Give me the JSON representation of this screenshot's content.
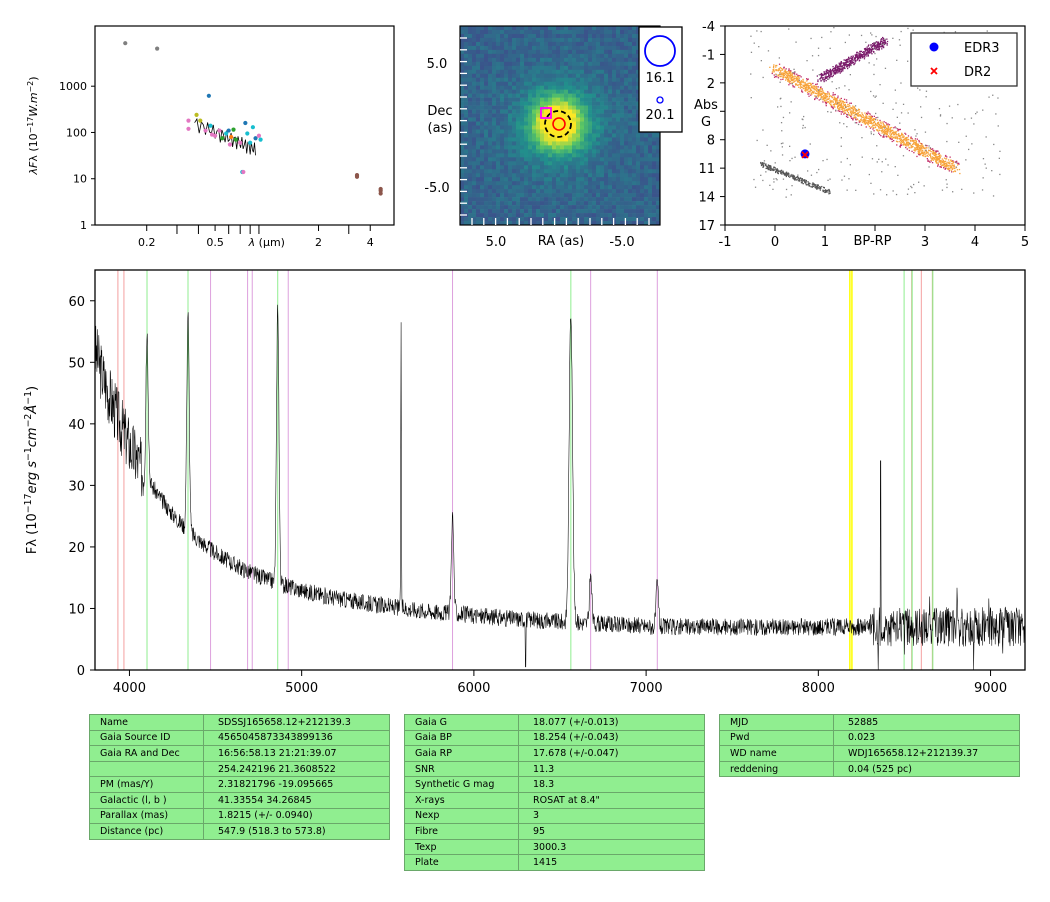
{
  "sed": {
    "ylabel": "λF_λ (10^-17 W.m^-2)",
    "xlabel": "λ (μm)",
    "yticks": [
      "1",
      "10",
      "100",
      "1000"
    ],
    "xticks": [
      "0.2",
      "0.5",
      "2",
      "4"
    ],
    "points": [
      {
        "x": 0.15,
        "y": 8500,
        "c": "#7f7f7f"
      },
      {
        "x": 0.23,
        "y": 6500,
        "c": "#7f7f7f"
      },
      {
        "x": 0.35,
        "y": 180,
        "c": "#e377c2"
      },
      {
        "x": 0.35,
        "y": 120,
        "c": "#e377c2"
      },
      {
        "x": 0.39,
        "y": 240,
        "c": "#bcbd22"
      },
      {
        "x": 0.41,
        "y": 180,
        "c": "#bcbd22"
      },
      {
        "x": 0.44,
        "y": 110,
        "c": "#e377c2"
      },
      {
        "x": 0.46,
        "y": 620,
        "c": "#1f77b4"
      },
      {
        "x": 0.47,
        "y": 140,
        "c": "#17becf"
      },
      {
        "x": 0.48,
        "y": 90,
        "c": "#e377c2"
      },
      {
        "x": 0.5,
        "y": 85,
        "c": "#e377c2"
      },
      {
        "x": 0.53,
        "y": 110,
        "c": "#e377c2"
      },
      {
        "x": 0.55,
        "y": 75,
        "c": "#2ca02c"
      },
      {
        "x": 0.58,
        "y": 95,
        "c": "#17becf"
      },
      {
        "x": 0.6,
        "y": 110,
        "c": "#1f77b4"
      },
      {
        "x": 0.61,
        "y": 55,
        "c": "#e377c2"
      },
      {
        "x": 0.62,
        "y": 80,
        "c": "#ff7f0e"
      },
      {
        "x": 0.64,
        "y": 115,
        "c": "#2ca02c"
      },
      {
        "x": 0.66,
        "y": 70,
        "c": "#2ca02c"
      },
      {
        "x": 0.7,
        "y": 60,
        "c": "#e377c2"
      },
      {
        "x": 0.72,
        "y": 14,
        "c": "#17becf"
      },
      {
        "x": 0.73,
        "y": 14,
        "c": "#e377c2"
      },
      {
        "x": 0.75,
        "y": 160,
        "c": "#1f77b4"
      },
      {
        "x": 0.77,
        "y": 95,
        "c": "#17becf"
      },
      {
        "x": 0.8,
        "y": 60,
        "c": "#17becf"
      },
      {
        "x": 0.83,
        "y": 130,
        "c": "#17becf"
      },
      {
        "x": 0.86,
        "y": 75,
        "c": "#1f77b4"
      },
      {
        "x": 0.9,
        "y": 85,
        "c": "#e377c2"
      },
      {
        "x": 0.92,
        "y": 70,
        "c": "#17becf"
      },
      {
        "x": 3.35,
        "y": 12,
        "c": "#8c564b"
      },
      {
        "x": 3.35,
        "y": 11,
        "c": "#8c564b"
      },
      {
        "x": 4.6,
        "y": 6,
        "c": "#8c564b"
      },
      {
        "x": 4.6,
        "y": 5.5,
        "c": "#8c564b"
      },
      {
        "x": 4.6,
        "y": 4.8,
        "c": "#8c564b"
      }
    ]
  },
  "cutout": {
    "ylabel": "Dec (as)",
    "xlabel": "RA (as)",
    "xticks": [
      "5.0",
      "-5.0"
    ],
    "yticks": [
      "5.0",
      "-5.0"
    ],
    "legend": [
      "16.1",
      "20.1"
    ]
  },
  "hrd": {
    "xlabel": "BP-RP",
    "ylabel": "Abs G",
    "xticks": [
      "-1",
      "0",
      "1",
      "3",
      "4",
      "5"
    ],
    "yticks": [
      "-4",
      "-1",
      "2",
      "5",
      "8",
      "11",
      "14",
      "17"
    ],
    "legend": [
      {
        "label": "EDR3",
        "color": "#0000ff",
        "marker": "circle"
      },
      {
        "label": "DR2",
        "color": "#ff0000",
        "marker": "cross"
      }
    ],
    "edr3": {
      "bp_rp": 0.6,
      "abs_g": 9.5
    },
    "dr2": {
      "bp_rp": 0.6,
      "abs_g": 9.6
    }
  },
  "chart_data": {
    "type": "line",
    "xlabel": "",
    "ylabel": "F_λ (10^-17 erg s^-1 cm^-2 Å^-1)",
    "xlim": [
      3800,
      9200
    ],
    "ylim": [
      0,
      65
    ],
    "xticks": [
      "4000",
      "5000",
      "6000",
      "7000",
      "8000",
      "9000"
    ],
    "yticks": [
      "0",
      "10",
      "20",
      "30",
      "40",
      "50",
      "60"
    ],
    "x": [
      3800,
      3850,
      3900,
      3950,
      4000,
      4050,
      4100,
      4150,
      4200,
      4250,
      4300,
      4340,
      4400,
      4500,
      4600,
      4700,
      4800,
      4861,
      4950,
      5100,
      5300,
      5500,
      5577,
      5700,
      5876,
      5950,
      6100,
      6300,
      6450,
      6563,
      6620,
      6700,
      6800,
      7000,
      7065,
      7200,
      7500,
      7800,
      8000,
      8200,
      8400,
      8600,
      8800,
      9000,
      9200
    ],
    "y": [
      50,
      43,
      40,
      34,
      31,
      23,
      55,
      25,
      23,
      21,
      20,
      58,
      22,
      19,
      17,
      17,
      18,
      59,
      19,
      16,
      15,
      14,
      59,
      14,
      25,
      14,
      13,
      13,
      13,
      58,
      13,
      15,
      12,
      11,
      14,
      11,
      10,
      10,
      10,
      9,
      9,
      9,
      8,
      8,
      7
    ],
    "lines": [
      {
        "x": 3933,
        "c": "#f4a0a0"
      },
      {
        "x": 3968,
        "c": "#f4a0a0"
      },
      {
        "x": 4102,
        "c": "#90ee90"
      },
      {
        "x": 4340,
        "c": "#90ee90"
      },
      {
        "x": 4471,
        "c": "#dda0dd"
      },
      {
        "x": 4686,
        "c": "#dda0dd"
      },
      {
        "x": 4713,
        "c": "#dda0dd"
      },
      {
        "x": 4861,
        "c": "#90ee90"
      },
      {
        "x": 4922,
        "c": "#dda0dd"
      },
      {
        "x": 5876,
        "c": "#dda0dd"
      },
      {
        "x": 6563,
        "c": "#90ee90"
      },
      {
        "x": 6678,
        "c": "#dda0dd"
      },
      {
        "x": 7065,
        "c": "#dda0dd"
      },
      {
        "x": 8183,
        "c": "#ffff00"
      },
      {
        "x": 8195,
        "c": "#ffff00"
      },
      {
        "x": 8498,
        "c": "#90ee90"
      },
      {
        "x": 8542,
        "c": "#d2b48c"
      },
      {
        "x": 8545,
        "c": "#90ee90"
      },
      {
        "x": 8598,
        "c": "#f4a0a0"
      },
      {
        "x": 8662,
        "c": "#d2b48c"
      },
      {
        "x": 8665,
        "c": "#90ee90"
      }
    ]
  },
  "table1": [
    [
      "Name",
      "SDSSJ165658.12+212139.3"
    ],
    [
      "Gaia Source ID",
      "4565045873343899136"
    ],
    [
      "Gaia RA and Dec",
      "16:56:58.13    21:21:39.07"
    ],
    [
      "",
      "254.242196    21.3608522"
    ],
    [
      "PM (mas/Y)",
      "2.31821796    -19.095665"
    ],
    [
      "Galactic (l, b )",
      "41.33554    34.26845"
    ],
    [
      "Parallax (mas)",
      "1.8215 (+/- 0.0940)"
    ],
    [
      "Distance (pc)",
      "547.9 (518.3 to 573.8)"
    ]
  ],
  "table2": [
    [
      "Gaia G",
      "18.077 (+/-0.013)"
    ],
    [
      "Gaia BP",
      "18.254 (+/-0.043)"
    ],
    [
      "Gaia RP",
      "17.678 (+/-0.047)"
    ],
    [
      "SNR",
      "11.3"
    ],
    [
      "Synthetic G mag",
      "18.3"
    ],
    [
      "X-rays",
      "ROSAT at 8.4\""
    ],
    [
      "Nexp",
      "3"
    ],
    [
      "Fibre",
      "95"
    ],
    [
      "Texp",
      "3000.3"
    ],
    [
      "Plate",
      "1415"
    ]
  ],
  "table3": [
    [
      "MJD",
      "52885"
    ],
    [
      "Pwd",
      "0.023"
    ],
    [
      "WD name",
      "WDJ165658.12+212139.37"
    ],
    [
      "reddening",
      "0.04 (525 pc)"
    ]
  ]
}
